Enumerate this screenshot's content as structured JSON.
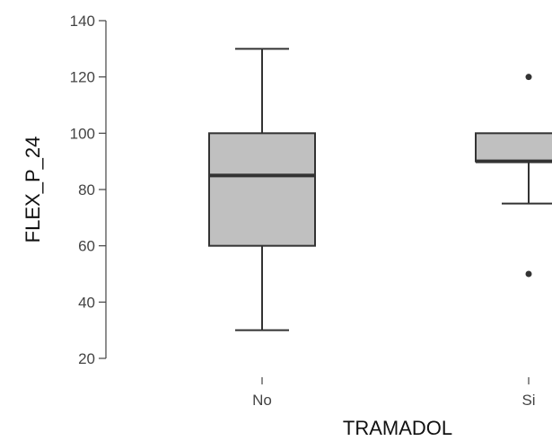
{
  "chart_data": {
    "type": "boxplot",
    "title": "",
    "xlabel": "TRAMADOL",
    "ylabel": "FLEX_P_24",
    "ylim": [
      20,
      140
    ],
    "yticks": [
      20,
      40,
      60,
      80,
      100,
      120,
      140
    ],
    "categories": [
      "No",
      "Si"
    ],
    "boxes": [
      {
        "category": "No",
        "whisker_low": 30,
        "q1": 60,
        "median": 85,
        "q3": 100,
        "whisker_high": 130,
        "outliers": []
      },
      {
        "category": "Si",
        "whisker_low": 75,
        "q1": 90,
        "median": 90,
        "q3": 100,
        "whisker_high": 100,
        "outliers": [
          50,
          120
        ]
      }
    ],
    "grid": false,
    "colors": {
      "box_fill": "#c0c0c0",
      "stroke": "#333333"
    }
  }
}
